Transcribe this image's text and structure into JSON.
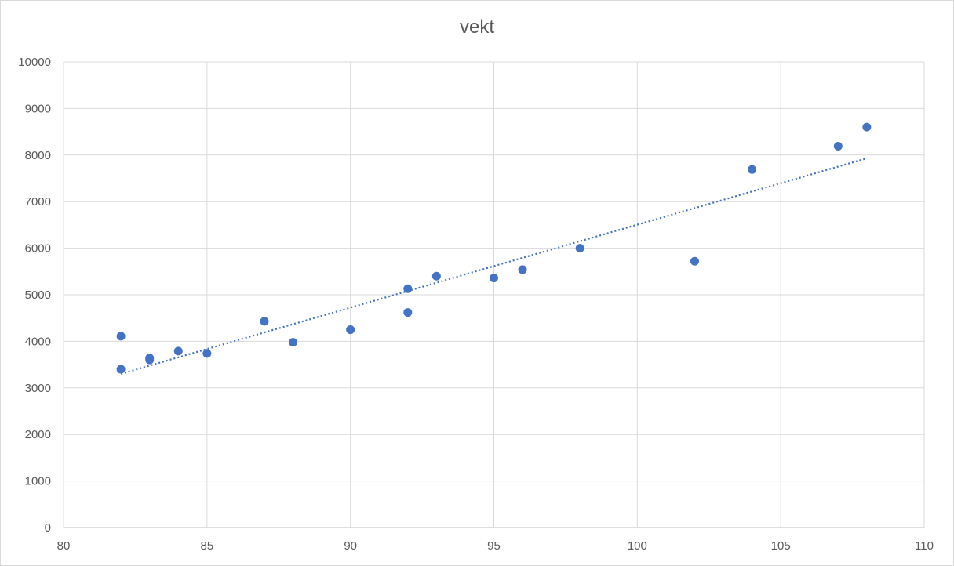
{
  "chart_data": {
    "type": "scatter",
    "title": "vekt",
    "xlabel": "",
    "ylabel": "",
    "xlim": [
      80,
      110
    ],
    "ylim": [
      0,
      10000
    ],
    "xticks": [
      80,
      85,
      90,
      95,
      100,
      105,
      110
    ],
    "yticks": [
      0,
      1000,
      2000,
      3000,
      4000,
      5000,
      6000,
      7000,
      8000,
      9000,
      10000
    ],
    "grid": true,
    "series": [
      {
        "color": "#4472c4",
        "points": [
          {
            "x": 82,
            "y": 4110
          },
          {
            "x": 82,
            "y": 3400
          },
          {
            "x": 83,
            "y": 3640
          },
          {
            "x": 83,
            "y": 3600
          },
          {
            "x": 84,
            "y": 3790
          },
          {
            "x": 85,
            "y": 3740
          },
          {
            "x": 87,
            "y": 4430
          },
          {
            "x": 88,
            "y": 3980
          },
          {
            "x": 90,
            "y": 4250
          },
          {
            "x": 92,
            "y": 5130
          },
          {
            "x": 92,
            "y": 4620
          },
          {
            "x": 93,
            "y": 5400
          },
          {
            "x": 95,
            "y": 5360
          },
          {
            "x": 96,
            "y": 5540
          },
          {
            "x": 98,
            "y": 6000
          },
          {
            "x": 102,
            "y": 5720
          },
          {
            "x": 104,
            "y": 7690
          },
          {
            "x": 107,
            "y": 8190
          },
          {
            "x": 108,
            "y": 8600
          }
        ]
      }
    ],
    "trendline": {
      "type": "linear",
      "style": "dotted",
      "color": "#4472c4",
      "x": [
        82,
        108
      ],
      "y": [
        3300,
        7930
      ]
    },
    "colors": {
      "gridline": "#d9d9d9",
      "axis": "#bfbfbf",
      "text": "#595959"
    }
  }
}
